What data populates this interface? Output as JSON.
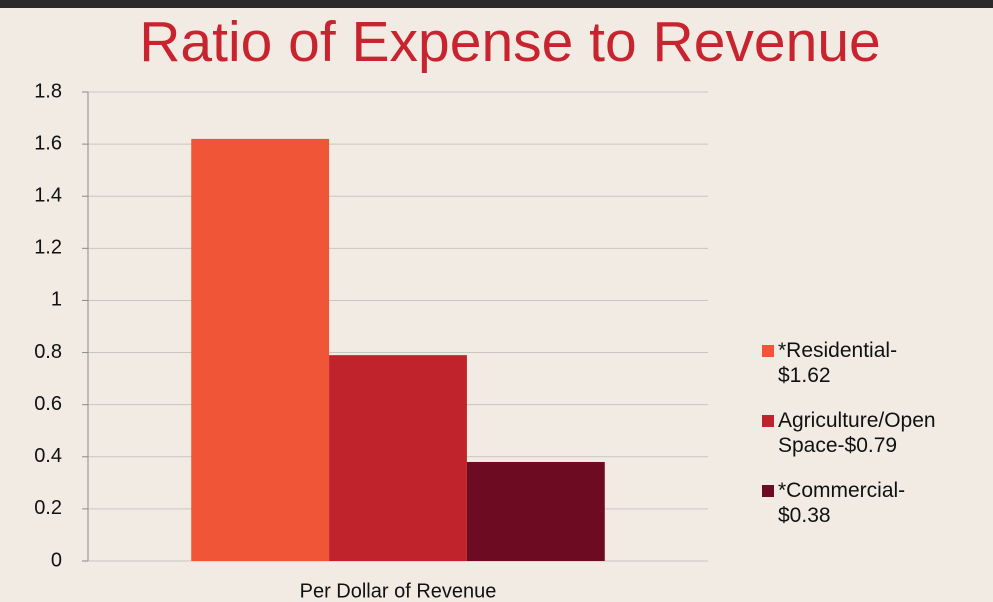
{
  "chart_data": {
    "type": "bar",
    "title": "Ratio of Expense to Revenue",
    "categories": [
      "Per Dollar of Revenue"
    ],
    "series": [
      {
        "name": "*Residential-\n$1.62",
        "color": "#f05538",
        "values": [
          1.62
        ]
      },
      {
        "name": "Agriculture/Open\nSpace-$0.79",
        "color": "#c1232d",
        "values": [
          0.79
        ]
      },
      {
        "name": "*Commercial-\n$0.38",
        "color": "#6d0b22",
        "values": [
          0.38
        ]
      }
    ],
    "ylim": [
      0,
      1.8
    ],
    "yticks": [
      0,
      0.2,
      0.4,
      0.6,
      0.8,
      1,
      1.2,
      1.4,
      1.6,
      1.8
    ],
    "grid": true,
    "legend": "right"
  }
}
